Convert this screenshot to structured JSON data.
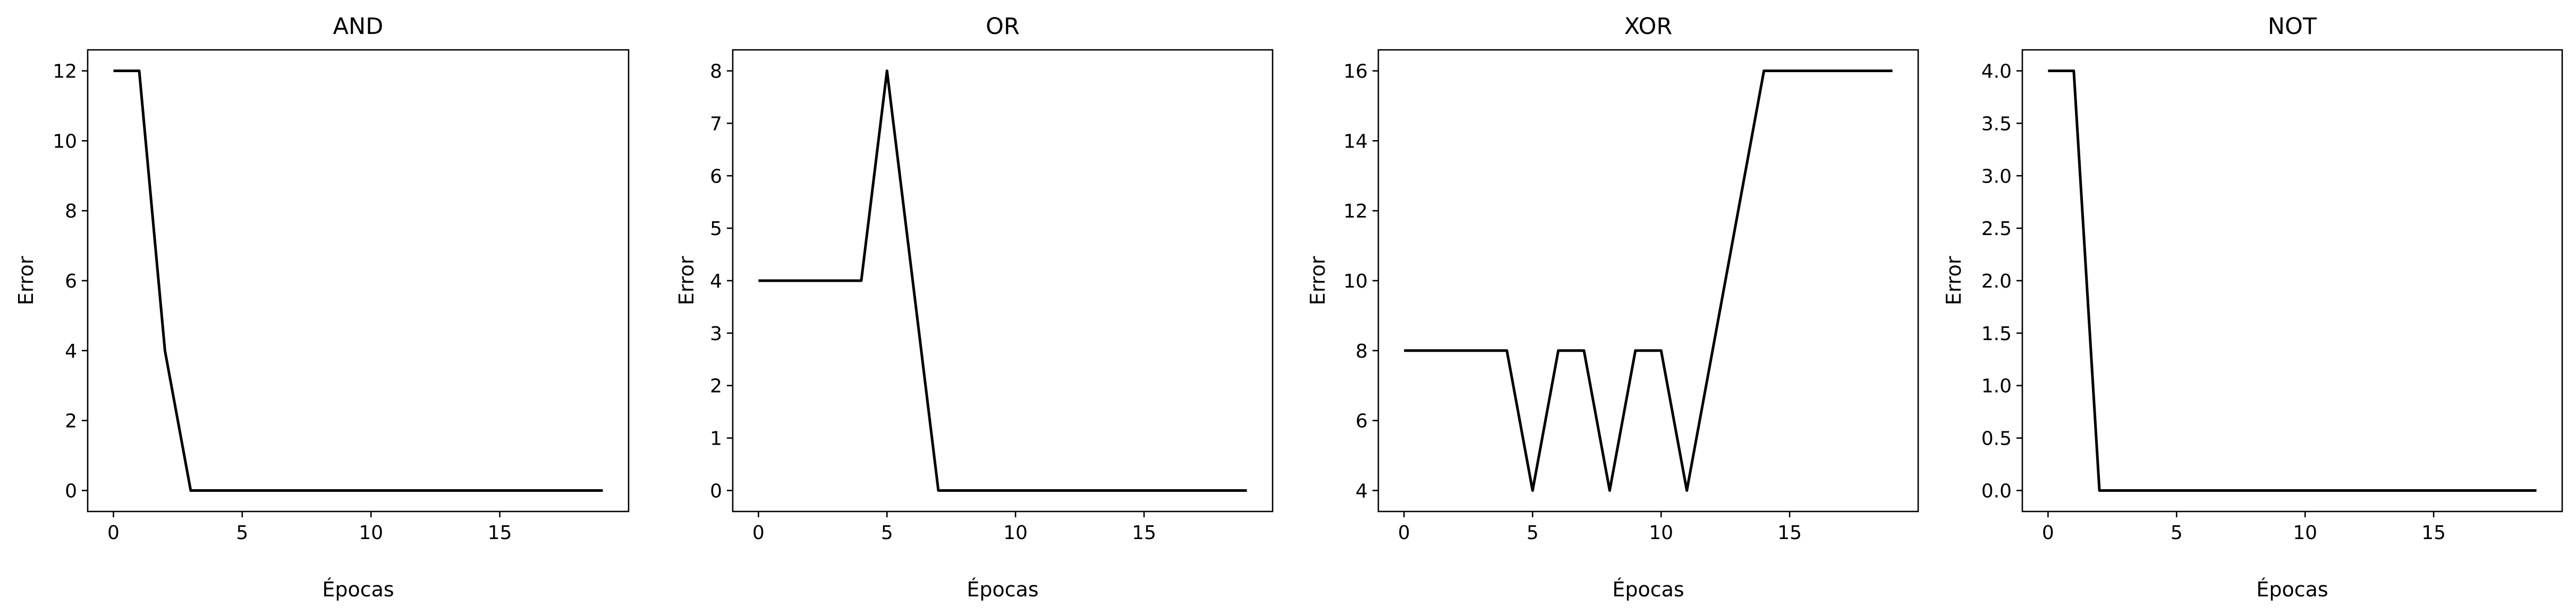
{
  "chart_data": [
    {
      "type": "line",
      "title": "AND",
      "xlabel": "Épocas",
      "ylabel": "Error",
      "xlim": [
        -1,
        20
      ],
      "ylim": [
        -0.6,
        12.6
      ],
      "xticks": [
        0,
        5,
        10,
        15
      ],
      "xtick_labels": [
        "0",
        "5",
        "10",
        "15"
      ],
      "yticks": [
        0,
        2,
        4,
        6,
        8,
        10,
        12
      ],
      "ytick_labels": [
        "0",
        "2",
        "4",
        "6",
        "8",
        "10",
        "12"
      ],
      "grid": false,
      "series": [
        {
          "color": "#000000",
          "x": [
            0,
            1,
            2,
            3,
            4,
            5,
            6,
            7,
            8,
            9,
            10,
            11,
            12,
            13,
            14,
            15,
            16,
            17,
            18,
            19
          ],
          "y": [
            12,
            12,
            4,
            0,
            0,
            0,
            0,
            0,
            0,
            0,
            0,
            0,
            0,
            0,
            0,
            0,
            0,
            0,
            0,
            0
          ]
        }
      ]
    },
    {
      "type": "line",
      "title": "OR",
      "xlabel": "Épocas",
      "ylabel": "Error",
      "xlim": [
        -1,
        20
      ],
      "ylim": [
        -0.4,
        8.4
      ],
      "xticks": [
        0,
        5,
        10,
        15
      ],
      "xtick_labels": [
        "0",
        "5",
        "10",
        "15"
      ],
      "yticks": [
        0,
        1,
        2,
        3,
        4,
        5,
        6,
        7,
        8
      ],
      "ytick_labels": [
        "0",
        "1",
        "2",
        "3",
        "4",
        "5",
        "6",
        "7",
        "8"
      ],
      "grid": false,
      "series": [
        {
          "color": "#000000",
          "x": [
            0,
            1,
            2,
            3,
            4,
            5,
            6,
            7,
            8,
            9,
            10,
            11,
            12,
            13,
            14,
            15,
            16,
            17,
            18,
            19
          ],
          "y": [
            4,
            4,
            4,
            4,
            4,
            8,
            4,
            0,
            0,
            0,
            0,
            0,
            0,
            0,
            0,
            0,
            0,
            0,
            0,
            0
          ]
        }
      ]
    },
    {
      "type": "line",
      "title": "XOR",
      "xlabel": "Épocas",
      "ylabel": "Error",
      "xlim": [
        -1,
        20
      ],
      "ylim": [
        3.4,
        16.6
      ],
      "xticks": [
        0,
        5,
        10,
        15
      ],
      "xtick_labels": [
        "0",
        "5",
        "10",
        "15"
      ],
      "yticks": [
        4,
        6,
        8,
        10,
        12,
        14,
        16
      ],
      "ytick_labels": [
        "4",
        "6",
        "8",
        "10",
        "12",
        "14",
        "16"
      ],
      "grid": false,
      "series": [
        {
          "color": "#000000",
          "x": [
            0,
            1,
            2,
            3,
            4,
            5,
            6,
            7,
            8,
            9,
            10,
            11,
            12,
            13,
            14,
            15,
            16,
            17,
            18,
            19
          ],
          "y": [
            8,
            8,
            8,
            8,
            8,
            4,
            8,
            8,
            4,
            8,
            8,
            4,
            8,
            12,
            16,
            16,
            16,
            16,
            16,
            16
          ]
        }
      ]
    },
    {
      "type": "line",
      "title": "NOT",
      "xlabel": "Épocas",
      "ylabel": "Error",
      "xlim": [
        -1,
        20
      ],
      "ylim": [
        -0.2,
        4.2
      ],
      "xticks": [
        0,
        5,
        10,
        15
      ],
      "xtick_labels": [
        "0",
        "5",
        "10",
        "15"
      ],
      "yticks": [
        0,
        0.5,
        1,
        1.5,
        2,
        2.5,
        3,
        3.5,
        4
      ],
      "ytick_labels": [
        "0.0",
        "0.5",
        "1.0",
        "1.5",
        "2.0",
        "2.5",
        "3.0",
        "3.5",
        "4.0"
      ],
      "grid": false,
      "series": [
        {
          "color": "#000000",
          "x": [
            0,
            1,
            2,
            3,
            4,
            5,
            6,
            7,
            8,
            9,
            10,
            11,
            12,
            13,
            14,
            15,
            16,
            17,
            18,
            19
          ],
          "y": [
            4,
            4,
            0,
            0,
            0,
            0,
            0,
            0,
            0,
            0,
            0,
            0,
            0,
            0,
            0,
            0,
            0,
            0,
            0,
            0
          ]
        }
      ]
    }
  ]
}
